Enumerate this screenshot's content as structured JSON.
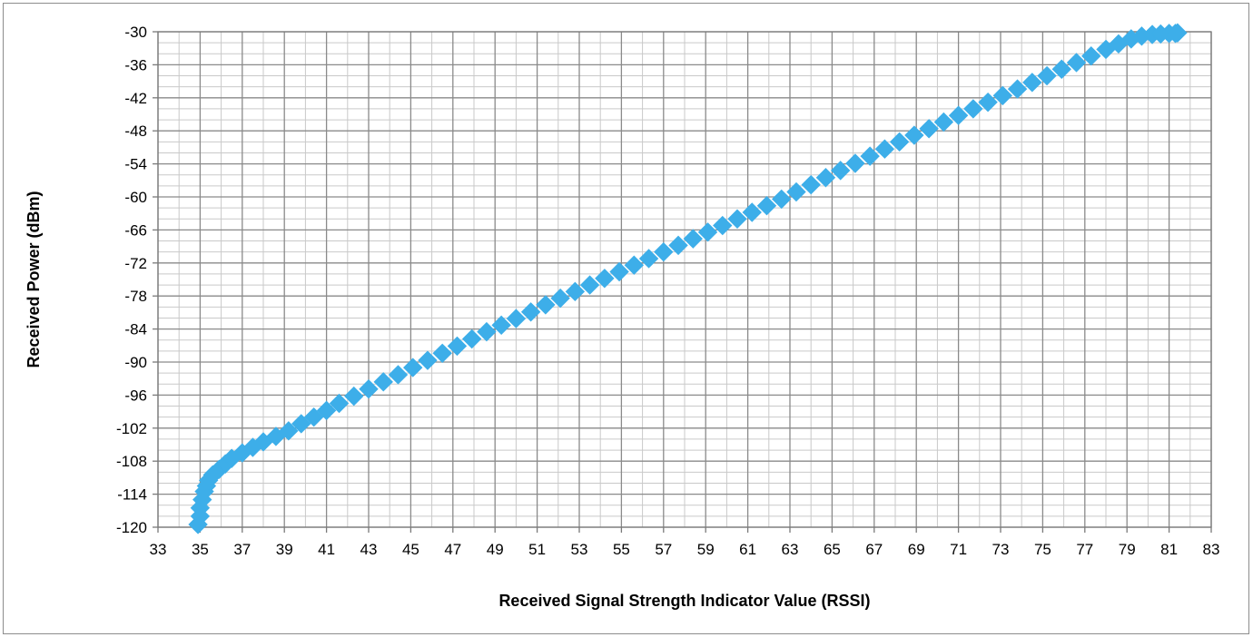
{
  "chart_data": {
    "type": "scatter",
    "title": "",
    "xlabel": "Received Signal Strength Indicator Value (RSSI)",
    "ylabel": "Received Power (dBm)",
    "xlim": [
      33,
      83
    ],
    "ylim": [
      -120,
      -30
    ],
    "x_ticks": [
      33,
      35,
      37,
      39,
      41,
      43,
      45,
      47,
      49,
      51,
      53,
      55,
      57,
      59,
      61,
      63,
      65,
      67,
      69,
      71,
      73,
      75,
      77,
      79,
      81,
      83
    ],
    "x_tick_labels": [
      "33",
      "35",
      "37",
      "39",
      "41",
      "43",
      "45",
      "47",
      "49",
      "51",
      "53",
      "55",
      "57",
      "59",
      "61",
      "63",
      "65",
      "67",
      "69",
      "71",
      "73",
      "75",
      "77",
      "79",
      "81",
      "83"
    ],
    "y_ticks": [
      -30,
      -36,
      -42,
      -48,
      -54,
      -60,
      -66,
      -72,
      -78,
      -84,
      -90,
      -96,
      -102,
      -108,
      -114,
      -120
    ],
    "y_tick_labels": [
      "-30",
      "-36",
      "-42",
      "-48",
      "-54",
      "-60",
      "-66",
      "-72",
      "-78",
      "-84",
      "-90",
      "-96",
      "-102",
      "-108",
      "-114",
      "-120"
    ],
    "grid": true,
    "minor_grid": true,
    "legend": "none",
    "marker": "diamond",
    "marker_color": "#3daee9",
    "series": [
      {
        "x": [
          34.9,
          35.0,
          35.0,
          35.1,
          35.2,
          35.3,
          35.4,
          35.6,
          35.9,
          36.2,
          36.5,
          37.0,
          37.5,
          38.0,
          38.6,
          39.2,
          39.8,
          40.4,
          41.0,
          41.6,
          42.3,
          43.0,
          43.7,
          44.4,
          45.1,
          45.8,
          46.5,
          47.2,
          47.9,
          48.6,
          49.3,
          50.0,
          50.7,
          51.4,
          52.1,
          52.8,
          53.5,
          54.2,
          54.9,
          55.6,
          56.3,
          57.0,
          57.7,
          58.4,
          59.1,
          59.8,
          60.5,
          61.2,
          61.9,
          62.6,
          63.3,
          64.0,
          64.7,
          65.4,
          66.1,
          66.8,
          67.5,
          68.2,
          68.9,
          69.6,
          70.3,
          71.0,
          71.7,
          72.4,
          73.1,
          73.8,
          74.5,
          75.2,
          75.9,
          76.6,
          77.3,
          78.0,
          78.6,
          79.2,
          79.7,
          80.2,
          80.6,
          81.0,
          81.3,
          81.4
        ],
        "y": [
          -119.5,
          -118.0,
          -116.5,
          -115.0,
          -113.5,
          -112.5,
          -111.5,
          -110.5,
          -109.5,
          -108.5,
          -107.5,
          -106.5,
          -105.5,
          -104.5,
          -103.5,
          -102.5,
          -101.2,
          -100.0,
          -98.8,
          -97.5,
          -96.2,
          -94.9,
          -93.6,
          -92.3,
          -91.0,
          -89.7,
          -88.4,
          -87.1,
          -85.8,
          -84.5,
          -83.3,
          -82.1,
          -80.9,
          -79.6,
          -78.4,
          -77.2,
          -76.0,
          -74.8,
          -73.6,
          -72.4,
          -71.2,
          -70.0,
          -68.8,
          -67.6,
          -66.4,
          -65.2,
          -64.0,
          -62.8,
          -61.6,
          -60.4,
          -59.1,
          -57.8,
          -56.5,
          -55.2,
          -53.9,
          -52.6,
          -51.3,
          -50.0,
          -48.8,
          -47.6,
          -46.4,
          -45.2,
          -44.0,
          -42.8,
          -41.6,
          -40.4,
          -39.2,
          -38.0,
          -36.8,
          -35.6,
          -34.4,
          -33.2,
          -32.2,
          -31.3,
          -30.8,
          -30.5,
          -30.4,
          -30.3,
          -30.3,
          -30.2
        ]
      }
    ]
  }
}
